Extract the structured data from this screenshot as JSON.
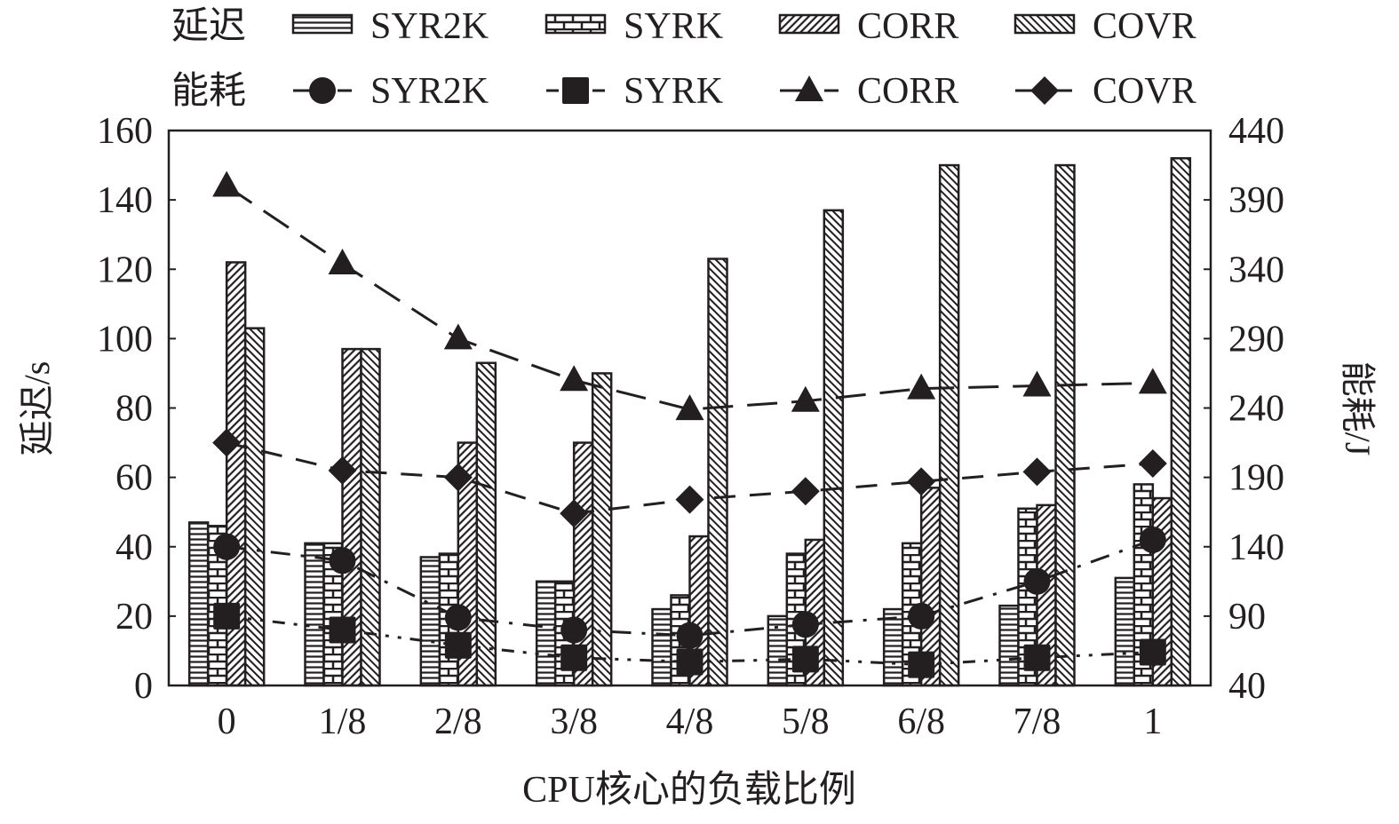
{
  "chart_data": {
    "type": "bar+line",
    "xlabel": "CPU核心的负载比例",
    "ylabel_left": "延迟/s",
    "ylabel_right": "能耗/J",
    "ylim_left": [
      0,
      160
    ],
    "yticks_left": [
      0,
      20,
      40,
      60,
      80,
      100,
      120,
      140,
      160
    ],
    "ylim_right": [
      40,
      440
    ],
    "yticks_right": [
      40,
      90,
      140,
      190,
      240,
      290,
      340,
      390,
      440
    ],
    "categories": [
      "0",
      "1/8",
      "2/8",
      "3/8",
      "4/8",
      "5/8",
      "6/8",
      "7/8",
      "1"
    ],
    "legend": {
      "placement": "top",
      "bar_group_label": "延迟",
      "line_group_label": "能耗"
    },
    "bar_series": [
      {
        "name": "SYR2K",
        "pattern": "horizontal-lines",
        "values": [
          47,
          41,
          37,
          30,
          22,
          20,
          22,
          23,
          31
        ]
      },
      {
        "name": "SYRK",
        "pattern": "brick",
        "values": [
          46,
          41,
          38,
          30,
          26,
          38,
          41,
          51,
          58
        ]
      },
      {
        "name": "CORR",
        "pattern": "back-diagonal",
        "values": [
          122,
          97,
          70,
          70,
          43,
          42,
          57,
          52,
          54
        ]
      },
      {
        "name": "COVR",
        "pattern": "forward-diagonal",
        "values": [
          103,
          97,
          93,
          90,
          123,
          137,
          150,
          150,
          152
        ]
      }
    ],
    "line_series": [
      {
        "name": "SYR2K",
        "marker": "circle",
        "dash": "dash-dot",
        "values": [
          140,
          130,
          89,
          80,
          76,
          84,
          90,
          115,
          145
        ]
      },
      {
        "name": "SYRK",
        "marker": "square",
        "dash": "dash-dot-dot",
        "values": [
          90,
          80,
          69,
          60,
          57,
          59,
          55,
          60,
          64
        ]
      },
      {
        "name": "CORR",
        "marker": "triangle",
        "dash": "long-dash",
        "values": [
          400,
          344,
          290,
          260,
          239,
          245,
          254,
          256,
          258
        ]
      },
      {
        "name": "COVR",
        "marker": "diamond",
        "dash": "dash",
        "values": [
          215,
          195,
          190,
          164,
          174,
          180,
          187,
          194,
          200
        ]
      }
    ],
    "colors": {
      "ink": "#231f20",
      "background": "#ffffff"
    }
  }
}
